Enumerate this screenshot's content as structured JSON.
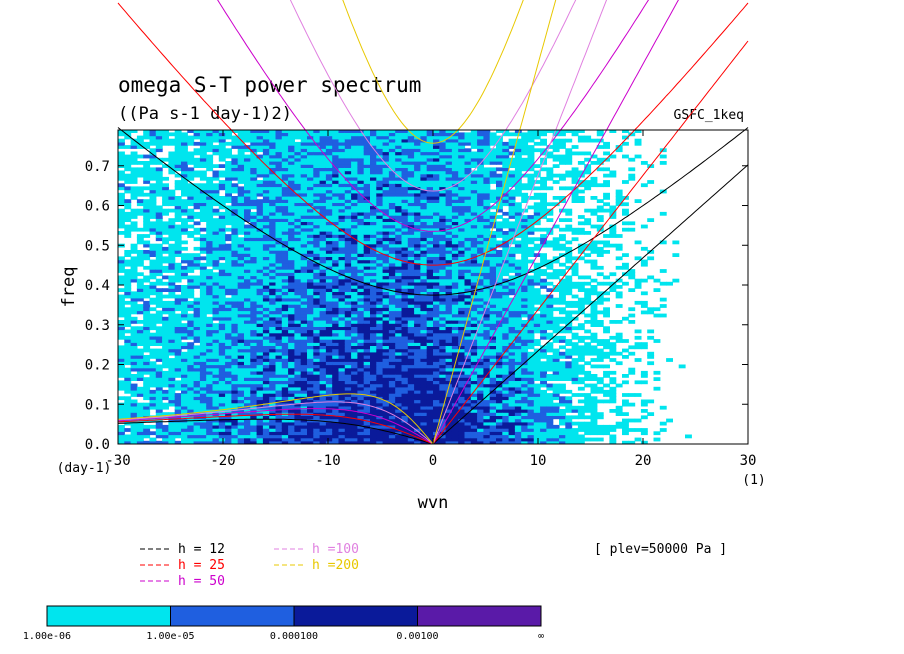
{
  "chart_data": {
    "type": "heatmap",
    "title": "omega S-T power spectrum",
    "subtitle": "((Pa s-1 day-1)2)",
    "model_label": "GSFC_1keq",
    "xlabel": "wvn",
    "ylabel": "freq",
    "x_unit_label": "(1)",
    "y_unit_label": "(day-1)",
    "xlim": [
      -30,
      30
    ],
    "ylim": [
      0,
      0.79
    ],
    "xticks": [
      "-30",
      "-20",
      "-10",
      "0",
      "10",
      "20",
      "30"
    ],
    "yticks": [
      "0.0",
      "0.1",
      "0.2",
      "0.3",
      "0.4",
      "0.5",
      "0.6",
      "0.7"
    ],
    "level_note": "[ plev=50000 Pa ]",
    "dispersion_curves": [
      {
        "name": "h = 12",
        "color": "#000000"
      },
      {
        "name": "h = 25",
        "color": "#ff0000"
      },
      {
        "name": "h = 50",
        "color": "#cc00cc"
      },
      {
        "name": "h =100",
        "color": "#e080e0"
      },
      {
        "name": "h =200",
        "color": "#e8c800"
      }
    ],
    "colorbar": {
      "labels": [
        "1.00e-06",
        "1.00e-05",
        "0.000100",
        "0.00100",
        "∞"
      ],
      "colors": [
        "#00e5ee",
        "#1f5fe0",
        "#0a1a9a",
        "#5a1aa8"
      ]
    }
  }
}
